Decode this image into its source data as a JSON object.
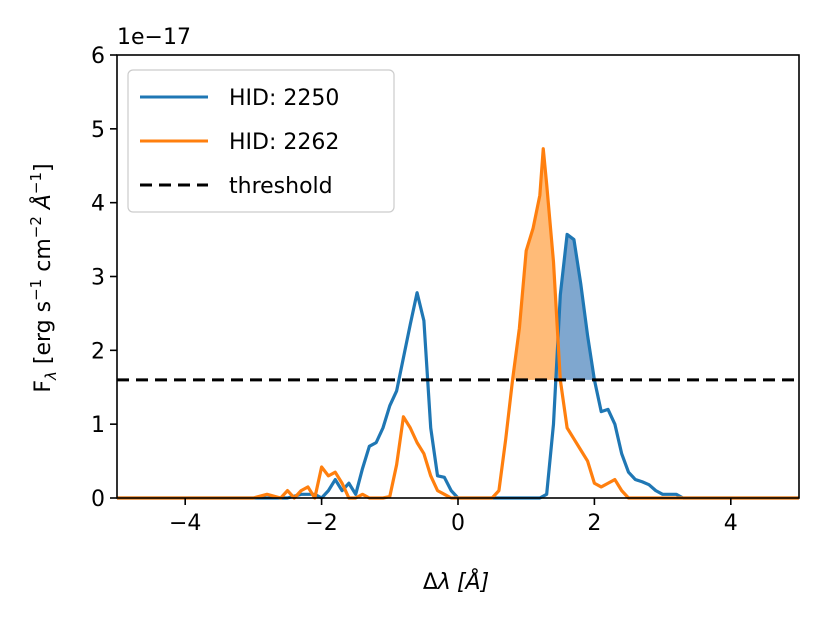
{
  "chart_data": {
    "type": "line",
    "xlabel_main": "Δ",
    "xlabel_var": "λ",
    "xlabel_unit": "[Å]",
    "ylabel_main": "F",
    "ylabel_sub": "λ",
    "ylabel_unit": " [erg s",
    "ylabel_sup1": "−1",
    "ylabel_mid": " cm",
    "ylabel_sup2": "−2",
    "ylabel_ang": " Å",
    "ylabel_sup3": "−1",
    "ylabel_close": "]",
    "offset_text": "1e−17",
    "xlim": [
      -5,
      5
    ],
    "ylim": [
      0,
      6
    ],
    "xticks": [
      -4,
      -2,
      0,
      2,
      4
    ],
    "xtick_labels": [
      "−4",
      "−2",
      "0",
      "2",
      "4"
    ],
    "yticks": [
      0,
      1,
      2,
      3,
      4,
      5,
      6
    ],
    "ytick_labels": [
      "0",
      "1",
      "2",
      "3",
      "4",
      "5",
      "6"
    ],
    "threshold": 1.6,
    "legend_position": "upper-left",
    "series": [
      {
        "name": "HID: 2250",
        "color": "#1f77b4",
        "x": [
          -5.0,
          -2.5,
          -2.3,
          -2.1,
          -2.0,
          -1.9,
          -1.8,
          -1.7,
          -1.6,
          -1.5,
          -1.4,
          -1.3,
          -1.2,
          -1.1,
          -1.0,
          -0.9,
          -0.8,
          -0.7,
          -0.6,
          -0.5,
          -0.4,
          -0.3,
          -0.2,
          -0.1,
          0.0,
          0.2,
          0.4,
          0.6,
          0.8,
          1.0,
          1.2,
          1.3,
          1.4,
          1.5,
          1.6,
          1.7,
          1.8,
          1.9,
          2.0,
          2.1,
          2.2,
          2.3,
          2.4,
          2.5,
          2.6,
          2.7,
          2.8,
          2.9,
          3.0,
          3.1,
          3.2,
          3.3,
          3.5,
          5.0
        ],
        "y": [
          0.0,
          0.0,
          0.05,
          0.05,
          0.0,
          0.1,
          0.25,
          0.1,
          0.2,
          0.05,
          0.4,
          0.7,
          0.75,
          0.95,
          1.25,
          1.45,
          1.9,
          2.35,
          2.78,
          2.4,
          0.95,
          0.3,
          0.28,
          0.1,
          0.0,
          0.0,
          0.0,
          0.0,
          0.0,
          0.0,
          0.0,
          0.05,
          1.0,
          2.75,
          3.57,
          3.5,
          2.9,
          2.2,
          1.6,
          1.17,
          1.2,
          1.0,
          0.6,
          0.35,
          0.25,
          0.22,
          0.18,
          0.1,
          0.05,
          0.05,
          0.05,
          0.0,
          0.0,
          0.0
        ]
      },
      {
        "name": "HID: 2262",
        "color": "#ff7f0e",
        "x": [
          -5.0,
          -3.5,
          -3.0,
          -2.8,
          -2.6,
          -2.5,
          -2.4,
          -2.3,
          -2.2,
          -2.1,
          -2.0,
          -1.9,
          -1.8,
          -1.7,
          -1.6,
          -1.5,
          -1.4,
          -1.3,
          -1.2,
          -1.1,
          -1.0,
          -0.9,
          -0.8,
          -0.7,
          -0.6,
          -0.5,
          -0.4,
          -0.3,
          -0.2,
          -0.1,
          0.0,
          0.2,
          0.4,
          0.5,
          0.6,
          0.7,
          0.8,
          0.9,
          1.0,
          1.1,
          1.2,
          1.25,
          1.3,
          1.4,
          1.5,
          1.6,
          1.7,
          1.8,
          1.9,
          2.0,
          2.1,
          2.2,
          2.3,
          2.4,
          2.5,
          2.6,
          2.7,
          3.0,
          5.0
        ],
        "y": [
          0.0,
          0.0,
          0.0,
          0.05,
          0.0,
          0.1,
          0.0,
          0.1,
          0.15,
          0.0,
          0.42,
          0.3,
          0.35,
          0.2,
          0.0,
          0.0,
          0.05,
          0.0,
          0.0,
          0.0,
          0.02,
          0.45,
          1.1,
          0.95,
          0.75,
          0.6,
          0.3,
          0.1,
          0.05,
          0.0,
          0.0,
          0.0,
          0.0,
          0.0,
          0.1,
          0.8,
          1.6,
          2.3,
          3.35,
          3.65,
          4.1,
          4.73,
          4.25,
          3.2,
          1.6,
          0.95,
          0.8,
          0.65,
          0.5,
          0.2,
          0.15,
          0.2,
          0.25,
          0.1,
          0.0,
          0.0,
          0.0,
          0.0,
          0.0
        ]
      }
    ],
    "threshold_series": {
      "name": "threshold",
      "color": "#000000",
      "dash": true
    },
    "fills": [
      {
        "series_index": 1,
        "color": "#ffbb78",
        "x_range": [
          0.8,
          1.5
        ]
      },
      {
        "series_index": 0,
        "color": "#7fa7cf",
        "x_range": [
          1.5,
          2.0
        ]
      }
    ]
  }
}
